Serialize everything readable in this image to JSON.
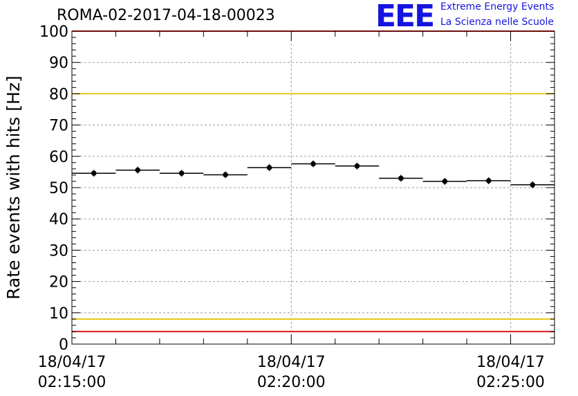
{
  "header": {
    "title": "ROMA-02-2017-04-18-00023",
    "logo": "EEE",
    "logo_line1": "Extreme Energy Events",
    "logo_line2": "La Scienza nelle Scuole"
  },
  "colors": {
    "limit_red": "#e11a1a",
    "limit_yellow": "#e6c619",
    "marker": "#000000",
    "logo_blue": "#1414e0",
    "grid": "#9a9a9a"
  },
  "chart_data": {
    "type": "scatter",
    "ylabel": "Rate events with hits [Hz]",
    "ylim": [
      0,
      100
    ],
    "x_ticks": [
      {
        "line1": "18/04/17",
        "line2": "02:15:00",
        "t": 0
      },
      {
        "line1": "18/04/17",
        "line2": "02:20:00",
        "t": 300
      },
      {
        "line1": "18/04/17",
        "line2": "02:25:00",
        "t": 600
      }
    ],
    "y_ticks": [
      0,
      10,
      20,
      30,
      40,
      50,
      60,
      70,
      80,
      90,
      100
    ],
    "grid": true,
    "x_range_seconds": [
      0,
      660
    ],
    "bin_width_seconds": 60,
    "points": [
      {
        "t": 30,
        "y": 54.6
      },
      {
        "t": 90,
        "y": 55.6
      },
      {
        "t": 150,
        "y": 54.6
      },
      {
        "t": 210,
        "y": 54.1
      },
      {
        "t": 270,
        "y": 56.4
      },
      {
        "t": 330,
        "y": 57.6
      },
      {
        "t": 390,
        "y": 56.9
      },
      {
        "t": 450,
        "y": 53.0
      },
      {
        "t": 510,
        "y": 52.0
      },
      {
        "t": 570,
        "y": 52.2
      },
      {
        "t": 630,
        "y": 50.9
      }
    ],
    "limits": [
      {
        "y": 100,
        "color": "red"
      },
      {
        "y": 80,
        "color": "yellow"
      },
      {
        "y": 8,
        "color": "yellow"
      },
      {
        "y": 4,
        "color": "red"
      }
    ]
  }
}
